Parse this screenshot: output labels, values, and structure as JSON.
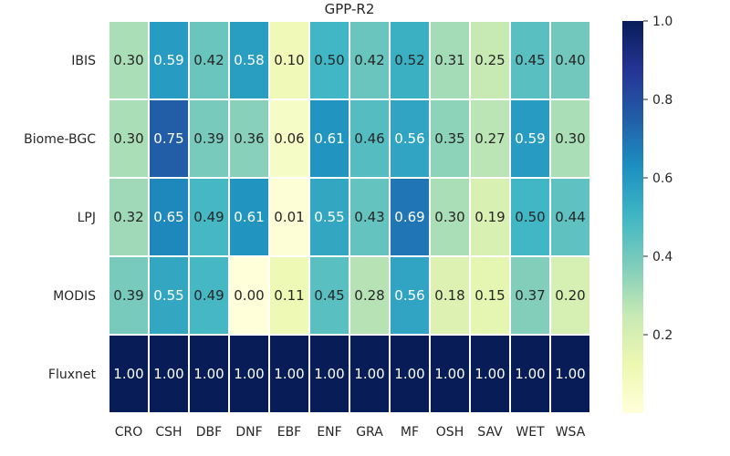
{
  "chart_data": {
    "type": "heatmap",
    "title": "GPP-R2",
    "xlabel": "",
    "ylabel": "",
    "x_categories": [
      "CRO",
      "CSH",
      "DBF",
      "DNF",
      "EBF",
      "ENF",
      "GRA",
      "MF",
      "OSH",
      "SAV",
      "WET",
      "WSA"
    ],
    "y_categories": [
      "IBIS",
      "Biome-BGC",
      "LPJ",
      "MODIS",
      "Fluxnet"
    ],
    "values": [
      [
        0.3,
        0.59,
        0.42,
        0.58,
        0.1,
        0.5,
        0.42,
        0.52,
        0.31,
        0.25,
        0.45,
        0.4
      ],
      [
        0.3,
        0.75,
        0.39,
        0.36,
        0.06,
        0.61,
        0.46,
        0.56,
        0.35,
        0.27,
        0.59,
        0.3
      ],
      [
        0.32,
        0.65,
        0.49,
        0.61,
        0.01,
        0.55,
        0.43,
        0.69,
        0.3,
        0.19,
        0.5,
        0.44
      ],
      [
        0.39,
        0.55,
        0.49,
        0.0,
        0.11,
        0.45,
        0.28,
        0.56,
        0.18,
        0.15,
        0.37,
        0.2
      ],
      [
        1.0,
        1.0,
        1.0,
        1.0,
        1.0,
        1.0,
        1.0,
        1.0,
        1.0,
        1.0,
        1.0,
        1.0
      ]
    ],
    "value_format": "0.00",
    "colormap": "YlGnBu",
    "colorbar": {
      "range": [
        0.0,
        1.0
      ],
      "ticks": [
        0.2,
        0.4,
        0.6,
        0.8,
        1.0
      ],
      "tick_labels": [
        "0.2",
        "0.4",
        "0.6",
        "0.8",
        "1.0"
      ]
    },
    "colors": {
      "cell_border": "#ffffff",
      "text_light": "#ffffff",
      "text_dark": "#262626"
    }
  }
}
